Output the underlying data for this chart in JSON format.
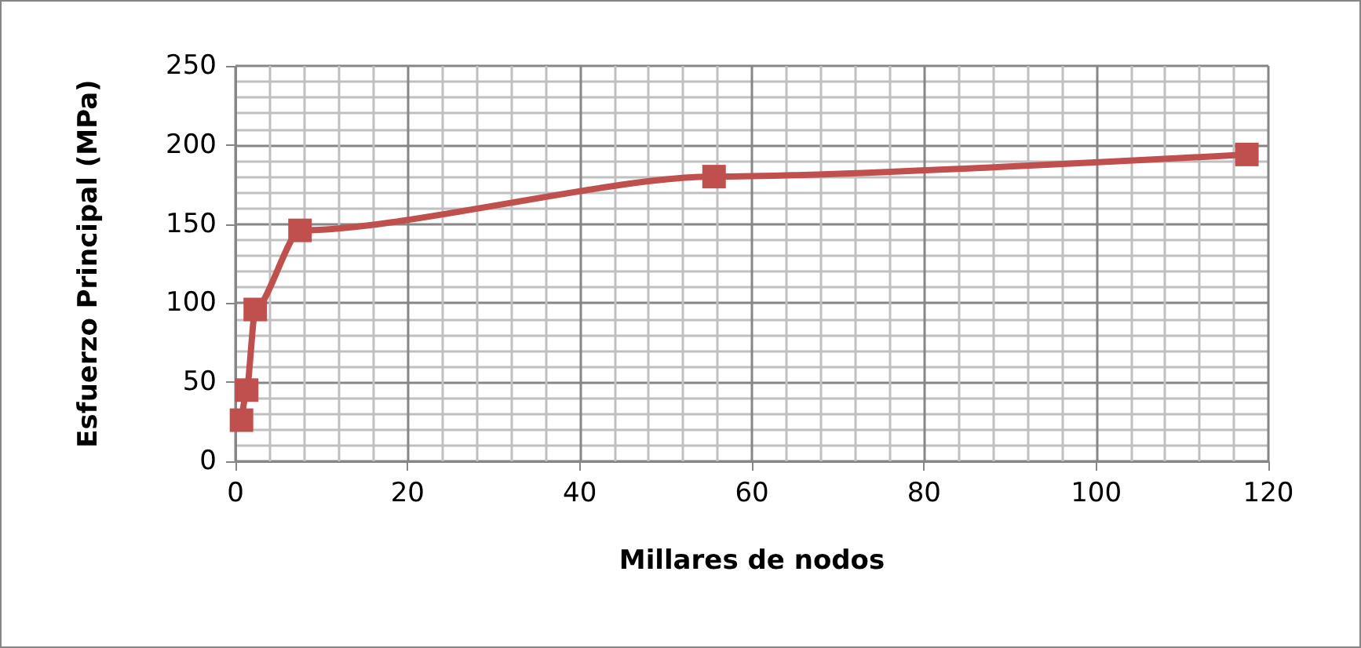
{
  "chart_data": {
    "type": "line",
    "xlabel": "Millares de nodos",
    "ylabel": "Esfuerzo Principal (MPa)",
    "x": [
      0.7,
      1.3,
      2.3,
      7.5,
      55.6,
      117.5
    ],
    "series": [
      {
        "color": "#c0504d",
        "values": [
          26,
          45,
          96,
          146,
          180,
          194
        ]
      }
    ],
    "xlim": [
      0,
      120
    ],
    "xticks": [
      0,
      20,
      40,
      60,
      80,
      100,
      120
    ],
    "ylim": [
      0,
      250
    ],
    "yticks": [
      0,
      50,
      100,
      150,
      200,
      250
    ],
    "grid": true,
    "marker": "square",
    "line_style": "solid"
  }
}
